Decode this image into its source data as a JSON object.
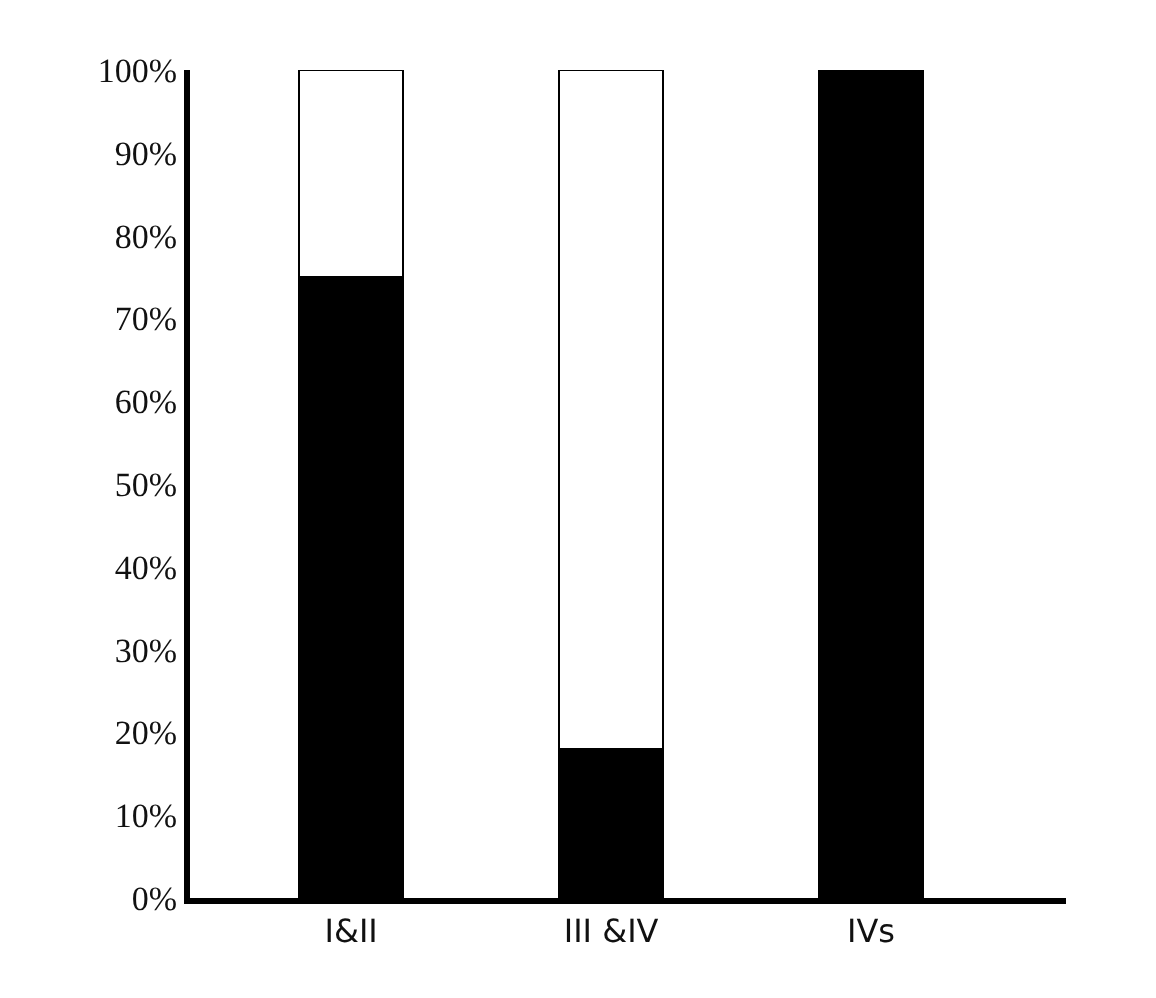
{
  "chart_data": {
    "type": "bar",
    "stacked": true,
    "categories": [
      "I&II",
      "III &IV",
      "IVs"
    ],
    "series": [
      {
        "color": "#000000",
        "values": [
          75,
          18,
          100
        ]
      },
      {
        "color": "#ffffff",
        "values": [
          25,
          82,
          null
        ]
      }
    ],
    "ylim": [
      0,
      100
    ],
    "yticks": [
      {
        "value": 0,
        "label": "0%"
      },
      {
        "value": 10,
        "label": "10%"
      },
      {
        "value": 20,
        "label": "20%"
      },
      {
        "value": 30,
        "label": "30%"
      },
      {
        "value": 40,
        "label": "40%"
      },
      {
        "value": 50,
        "label": "50%"
      },
      {
        "value": 60,
        "label": "60%"
      },
      {
        "value": 70,
        "label": "70%"
      },
      {
        "value": 80,
        "label": "80%"
      },
      {
        "value": 90,
        "label": "90%"
      },
      {
        "value": 100,
        "label": "100%"
      }
    ],
    "relative": false
  }
}
